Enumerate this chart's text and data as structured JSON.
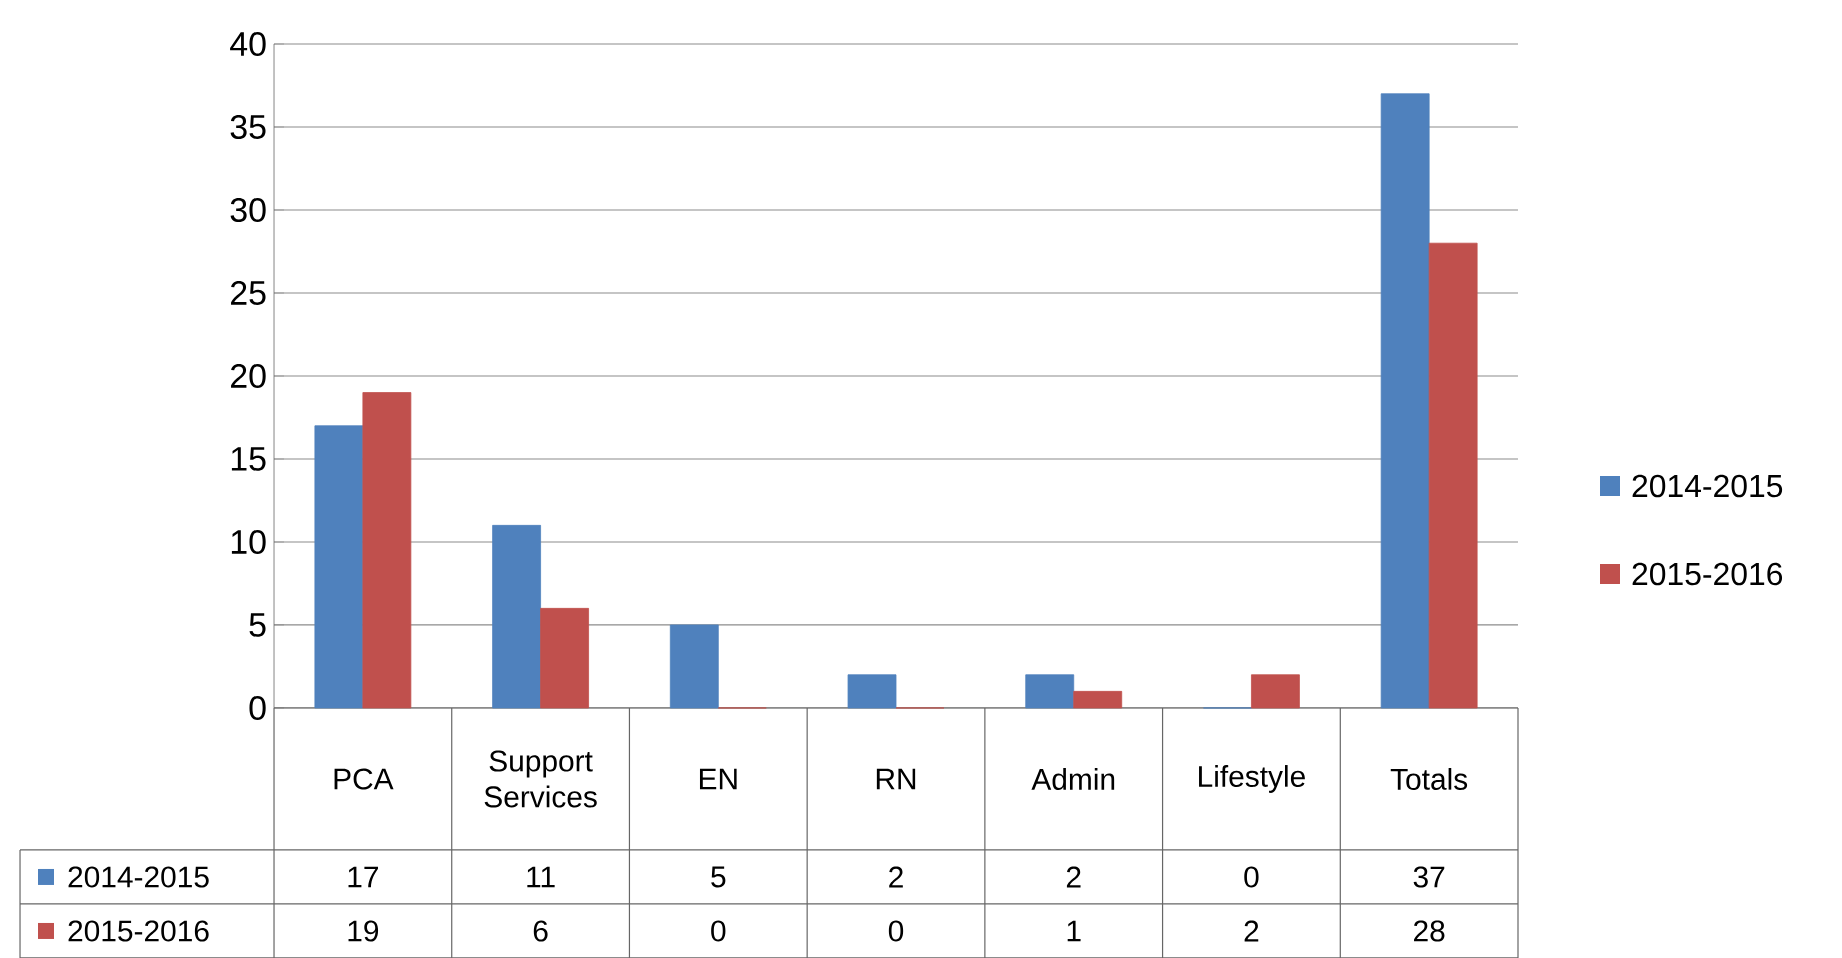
{
  "chart_data": {
    "type": "bar",
    "categories": [
      "PCA",
      "Support Services",
      "EN",
      "RN",
      "Admin",
      "Lifestyle",
      "Totals"
    ],
    "series": [
      {
        "name": "2014-2015",
        "color": "#4f81bd",
        "values": [
          17,
          11,
          5,
          2,
          2,
          0,
          37
        ]
      },
      {
        "name": "2015-2016",
        "color": "#c0504d",
        "values": [
          19,
          6,
          0,
          0,
          1,
          2,
          28
        ]
      }
    ],
    "ylim": [
      0,
      40
    ],
    "yticks": [
      0,
      5,
      10,
      15,
      20,
      25,
      30,
      35,
      40
    ],
    "grid": "y",
    "legend": "right",
    "data_labels": true
  }
}
